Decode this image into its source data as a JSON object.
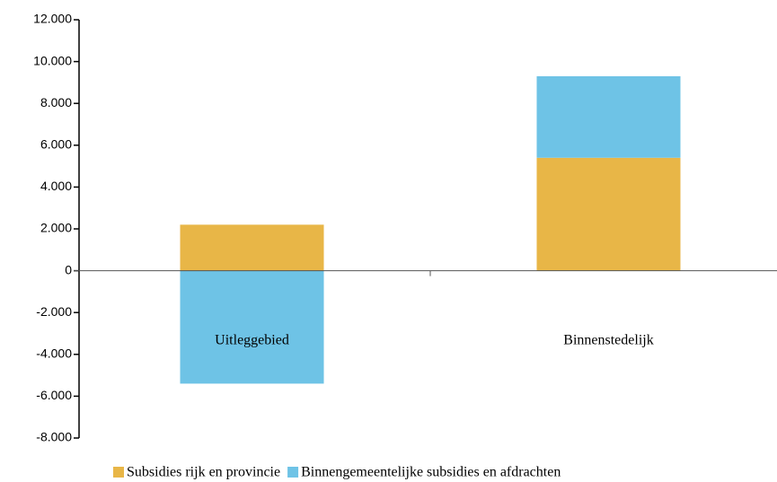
{
  "chart_data": {
    "type": "bar",
    "stacked": true,
    "categories": [
      "Uitleggebied",
      "Binnenstedelijk"
    ],
    "series": [
      {
        "name": "Subsidies rijk en provincie",
        "color": "#e8b647",
        "values": [
          2200,
          5400
        ]
      },
      {
        "name": "Binnengemeentelijke subsidies en afdrachten",
        "color": "#6ec3e6",
        "values": [
          -5400,
          3900
        ]
      }
    ],
    "ylim": [
      -8000,
      12000
    ],
    "yticks": [
      {
        "value": -8000,
        "label": "-8.000"
      },
      {
        "value": -6000,
        "label": "-6.000"
      },
      {
        "value": -4000,
        "label": "-4.000"
      },
      {
        "value": -2000,
        "label": "-2.000"
      },
      0,
      {
        "value": 2000,
        "label": "2.000"
      },
      {
        "value": 4000,
        "label": "4.000"
      },
      {
        "value": 6000,
        "label": "6.000"
      },
      {
        "value": 8000,
        "label": "8.000"
      },
      {
        "value": 10000,
        "label": "10.000"
      },
      {
        "value": 12000,
        "label": "12.000"
      }
    ],
    "legend": "bottom"
  }
}
